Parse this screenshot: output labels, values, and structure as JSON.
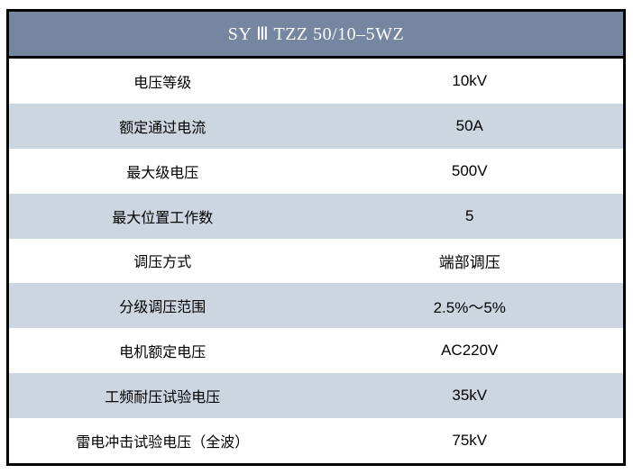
{
  "table": {
    "title": "SY Ⅲ TZZ 50/10–5WZ",
    "rows": [
      {
        "label": "电压等级",
        "value": "10kV"
      },
      {
        "label": "额定通过电流",
        "value": "50A"
      },
      {
        "label": "最大级电压",
        "value": "500V"
      },
      {
        "label": "最大位置工作数",
        "value": "5"
      },
      {
        "label": "调压方式",
        "value": "端部调压"
      },
      {
        "label": "分级调压范围",
        "value": "2.5%～5%"
      },
      {
        "label": "电机额定电压",
        "value": "AC220V"
      },
      {
        "label": "工频耐压试验电压",
        "value": "35kV"
      },
      {
        "label": "雷电冲击试验电压（全波）",
        "value": "75kV"
      }
    ],
    "colors": {
      "header_bg": "#7685A0",
      "header_text": "#FFFFFF",
      "row_alt_bg": "#CCD5E0",
      "border": "#000000"
    }
  }
}
